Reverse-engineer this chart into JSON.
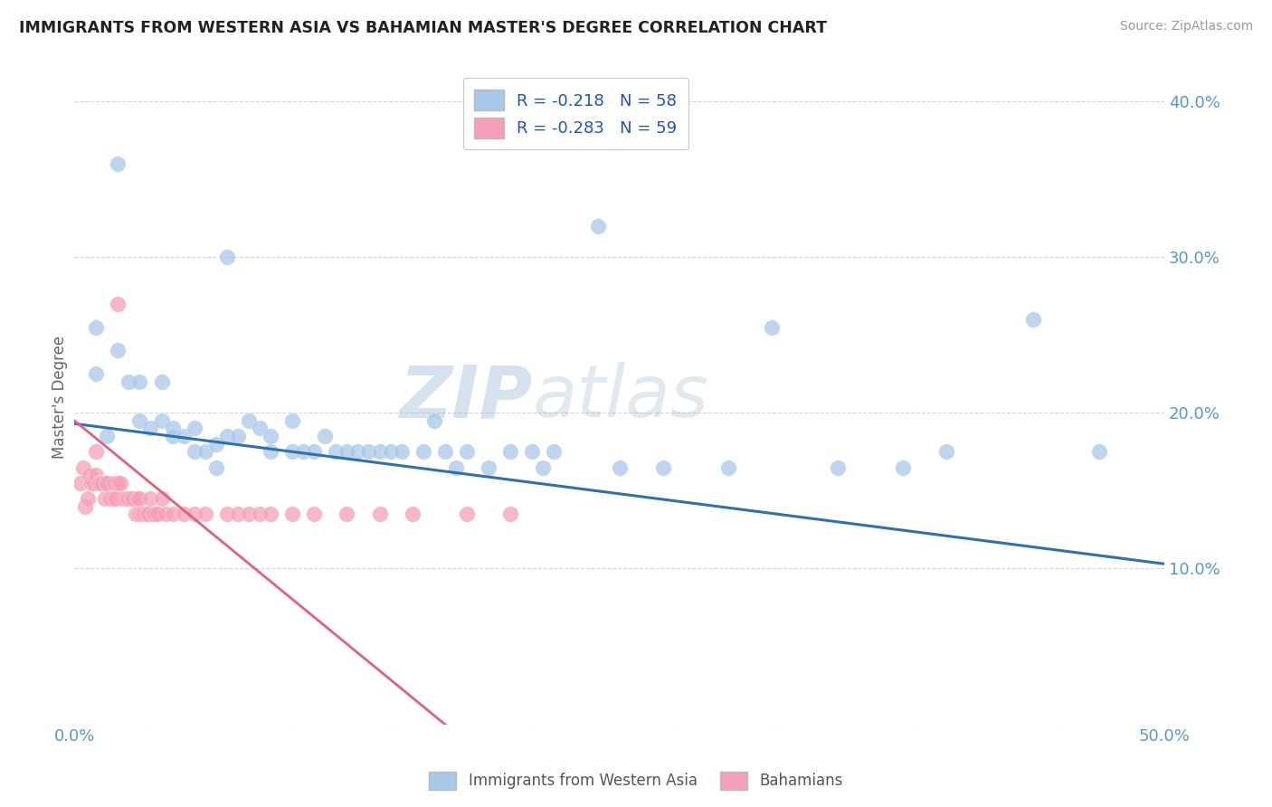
{
  "title": "IMMIGRANTS FROM WESTERN ASIA VS BAHAMIAN MASTER'S DEGREE CORRELATION CHART",
  "source": "Source: ZipAtlas.com",
  "ylabel": "Master's Degree",
  "legend1_R": "R = -0.218",
  "legend1_N": "N = 58",
  "legend2_R": "R = -0.283",
  "legend2_N": "N = 59",
  "legend1_label": "Immigrants from Western Asia",
  "legend2_label": "Bahamians",
  "xlim": [
    0.0,
    0.5
  ],
  "ylim": [
    0.0,
    0.42
  ],
  "yticks": [
    0.0,
    0.1,
    0.2,
    0.3,
    0.4
  ],
  "xticks": [
    0.0,
    0.05,
    0.1,
    0.15,
    0.2,
    0.25,
    0.3,
    0.35,
    0.4,
    0.45,
    0.5
  ],
  "blue_color": "#a8c8e8",
  "pink_color": "#f4a0b8",
  "blue_line_color": "#3070b0",
  "pink_line_color": "#e06080",
  "watermark_zip": "ZIP",
  "watermark_atlas": "atlas",
  "blue_scatter_x": [
    0.02,
    0.01,
    0.01,
    0.015,
    0.02,
    0.025,
    0.03,
    0.03,
    0.035,
    0.04,
    0.04,
    0.045,
    0.045,
    0.05,
    0.055,
    0.055,
    0.06,
    0.065,
    0.065,
    0.07,
    0.07,
    0.075,
    0.08,
    0.085,
    0.09,
    0.09,
    0.1,
    0.1,
    0.105,
    0.11,
    0.115,
    0.12,
    0.125,
    0.13,
    0.135,
    0.14,
    0.145,
    0.15,
    0.16,
    0.165,
    0.17,
    0.175,
    0.18,
    0.19,
    0.2,
    0.21,
    0.215,
    0.22,
    0.24,
    0.25,
    0.27,
    0.3,
    0.32,
    0.35,
    0.38,
    0.4,
    0.44,
    0.47
  ],
  "blue_scatter_y": [
    0.36,
    0.255,
    0.225,
    0.185,
    0.24,
    0.22,
    0.22,
    0.195,
    0.19,
    0.22,
    0.195,
    0.19,
    0.185,
    0.185,
    0.19,
    0.175,
    0.175,
    0.18,
    0.165,
    0.3,
    0.185,
    0.185,
    0.195,
    0.19,
    0.175,
    0.185,
    0.175,
    0.195,
    0.175,
    0.175,
    0.185,
    0.175,
    0.175,
    0.175,
    0.175,
    0.175,
    0.175,
    0.175,
    0.175,
    0.195,
    0.175,
    0.165,
    0.175,
    0.165,
    0.175,
    0.175,
    0.165,
    0.175,
    0.32,
    0.165,
    0.165,
    0.165,
    0.255,
    0.165,
    0.165,
    0.175,
    0.26,
    0.175
  ],
  "pink_scatter_x": [
    0.003,
    0.004,
    0.005,
    0.006,
    0.007,
    0.008,
    0.009,
    0.01,
    0.01,
    0.011,
    0.012,
    0.013,
    0.014,
    0.015,
    0.015,
    0.016,
    0.017,
    0.018,
    0.018,
    0.019,
    0.02,
    0.02,
    0.021,
    0.022,
    0.023,
    0.024,
    0.025,
    0.026,
    0.027,
    0.028,
    0.029,
    0.03,
    0.03,
    0.031,
    0.032,
    0.033,
    0.034,
    0.035,
    0.036,
    0.037,
    0.038,
    0.04,
    0.042,
    0.045,
    0.05,
    0.055,
    0.06,
    0.07,
    0.075,
    0.08,
    0.085,
    0.09,
    0.1,
    0.11,
    0.125,
    0.14,
    0.155,
    0.18,
    0.2
  ],
  "pink_scatter_y": [
    0.155,
    0.165,
    0.14,
    0.145,
    0.16,
    0.155,
    0.155,
    0.16,
    0.175,
    0.155,
    0.155,
    0.155,
    0.145,
    0.155,
    0.155,
    0.145,
    0.145,
    0.145,
    0.155,
    0.145,
    0.27,
    0.155,
    0.155,
    0.145,
    0.145,
    0.145,
    0.145,
    0.145,
    0.145,
    0.135,
    0.145,
    0.145,
    0.135,
    0.135,
    0.135,
    0.135,
    0.135,
    0.145,
    0.135,
    0.135,
    0.135,
    0.145,
    0.135,
    0.135,
    0.135,
    0.135,
    0.135,
    0.135,
    0.135,
    0.135,
    0.135,
    0.135,
    0.135,
    0.135,
    0.135,
    0.135,
    0.135,
    0.135,
    0.135
  ],
  "blue_line_x0": 0.0,
  "blue_line_y0": 0.193,
  "blue_line_x1": 0.5,
  "blue_line_y1": 0.103,
  "pink_line_x0": 0.0,
  "pink_line_y0": 0.195,
  "pink_line_x1": 0.17,
  "pink_line_y1": 0.0
}
